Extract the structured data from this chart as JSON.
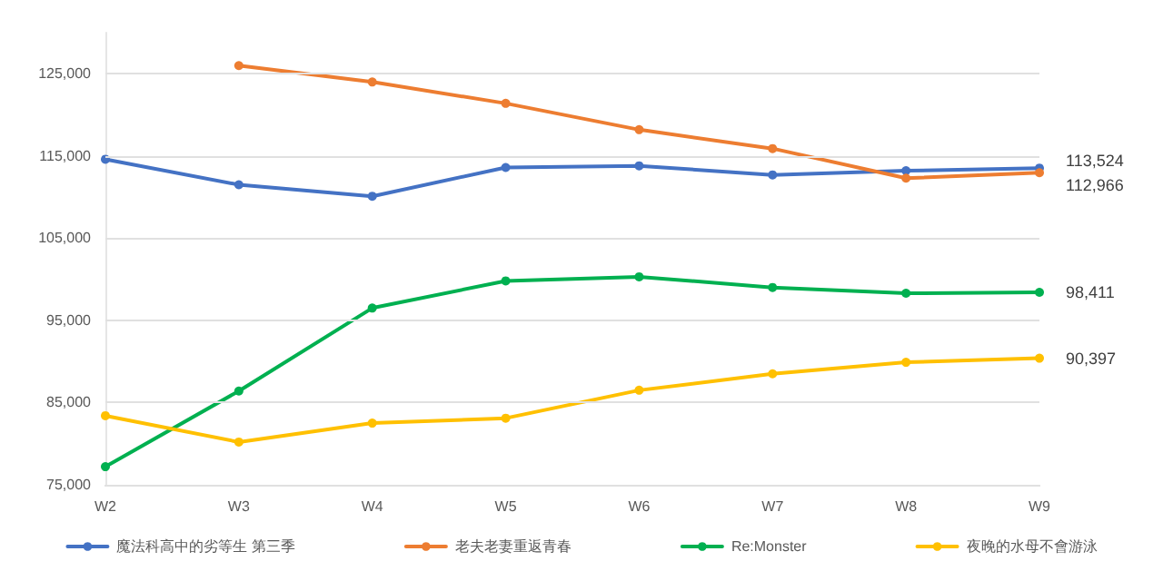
{
  "chart_data": {
    "type": "line",
    "categories": [
      "W2",
      "W3",
      "W4",
      "W5",
      "W6",
      "W7",
      "W8",
      "W9"
    ],
    "series": [
      {
        "name": "魔法科高中的劣等生 第三季",
        "color": "#4472c4",
        "values": [
          114600,
          111500,
          110100,
          113600,
          113800,
          112700,
          113200,
          113524
        ],
        "value_labels": [
          null,
          null,
          null,
          null,
          null,
          null,
          null,
          "113,524"
        ]
      },
      {
        "name": "老夫老妻重返青春",
        "color": "#ed7d31",
        "values": [
          null,
          126000,
          124000,
          121400,
          118200,
          115900,
          112300,
          112966
        ],
        "value_labels": [
          null,
          null,
          null,
          null,
          null,
          null,
          null,
          "112,966"
        ]
      },
      {
        "name": "Re:Monster",
        "color": "#00b050",
        "values": [
          77200,
          86400,
          96500,
          99800,
          100300,
          99000,
          98300,
          98411
        ],
        "value_labels": [
          null,
          null,
          null,
          null,
          null,
          null,
          null,
          "98,411"
        ]
      },
      {
        "name": "夜晚的水母不會游泳",
        "color": "#ffc000",
        "values": [
          83400,
          80200,
          82500,
          83100,
          86500,
          88500,
          89900,
          90397
        ],
        "value_labels": [
          null,
          null,
          null,
          null,
          null,
          null,
          null,
          "90,397"
        ]
      }
    ],
    "ylim": [
      75000,
      130000
    ],
    "yticks": [
      {
        "value": 75000,
        "label": "75,000"
      },
      {
        "value": 85000,
        "label": "85,000"
      },
      {
        "value": 95000,
        "label": "95,000"
      },
      {
        "value": 105000,
        "label": "105,000"
      },
      {
        "value": 115000,
        "label": "115,000"
      },
      {
        "value": 125000,
        "label": "125,000"
      }
    ],
    "grid": "y",
    "legend": "bottom",
    "marker": "circle",
    "line_style": "solid"
  }
}
